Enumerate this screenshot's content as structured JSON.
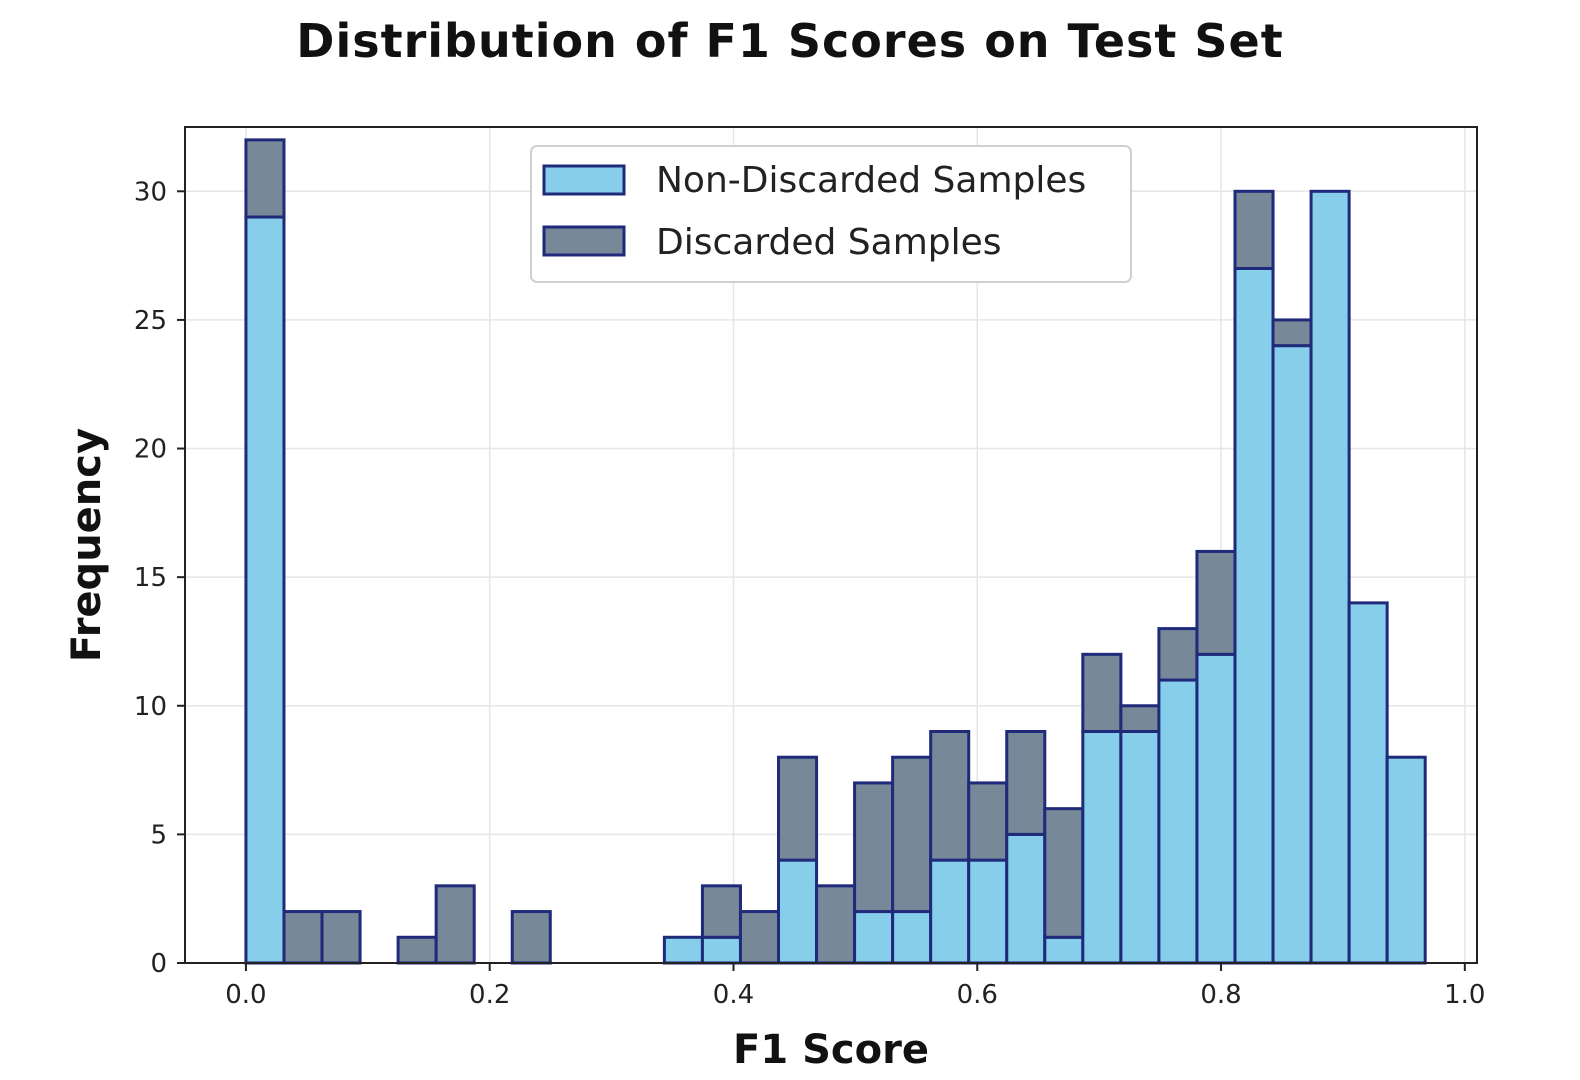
{
  "chart_data": {
    "type": "bar",
    "stacked": true,
    "title": "Distribution of F1 Scores on Test Set",
    "xlabel": "F1 Score",
    "ylabel": "Frequency",
    "xlim": [
      -0.05,
      1.01
    ],
    "ylim": [
      0,
      32.5
    ],
    "xticks": [
      "0.0",
      "0.2",
      "0.4",
      "0.6",
      "0.8",
      "1.0"
    ],
    "xtick_values": [
      0.0,
      0.2,
      0.4,
      0.6,
      0.8,
      1.0
    ],
    "yticks": [
      "0",
      "5",
      "10",
      "15",
      "20",
      "25",
      "30"
    ],
    "ytick_values": [
      0,
      5,
      10,
      15,
      20,
      25,
      30
    ],
    "bin_range": [
      0.0,
      0.9675
    ],
    "grid": true,
    "legend_position": "top-center",
    "colors": {
      "non_discarded": "#87CEEB",
      "discarded": "#778899",
      "edge": "#1f2a7a",
      "grid": "#e6e6e6"
    },
    "series": [
      {
        "name": "Non-Discarded Samples",
        "values": [
          29,
          0,
          0,
          0,
          0,
          0,
          0,
          0,
          0,
          0,
          0,
          1,
          1,
          0,
          4,
          0,
          2,
          2,
          4,
          4,
          5,
          1,
          9,
          9,
          11,
          12,
          27,
          24,
          30,
          14,
          8
        ]
      },
      {
        "name": "Discarded Samples",
        "values": [
          3,
          2,
          2,
          0,
          1,
          3,
          0,
          2,
          0,
          0,
          0,
          0,
          2,
          2,
          4,
          3,
          5,
          6,
          5,
          3,
          4,
          5,
          3,
          1,
          2,
          4,
          3,
          1,
          0,
          0,
          0
        ]
      }
    ]
  }
}
